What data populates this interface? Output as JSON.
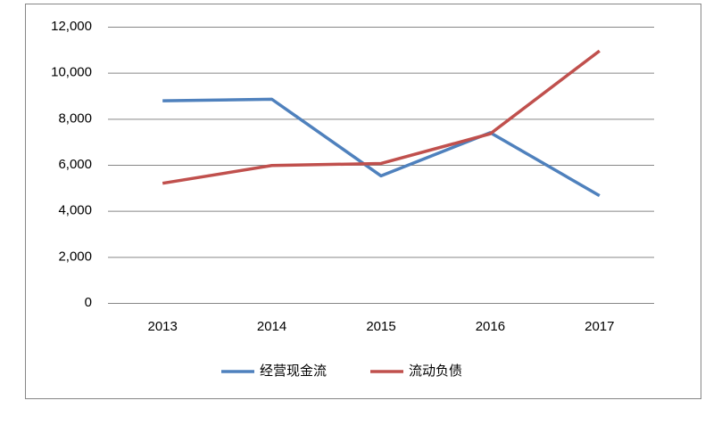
{
  "chart_data": {
    "type": "line",
    "categories": [
      "2013",
      "2014",
      "2015",
      "2016",
      "2017"
    ],
    "series": [
      {
        "name": "经营现金流",
        "color": "#4f81bd",
        "values": [
          8780,
          8850,
          5520,
          7400,
          4660
        ]
      },
      {
        "name": "流动负债",
        "color": "#c0504d",
        "values": [
          5200,
          5970,
          6060,
          7350,
          10950
        ]
      }
    ],
    "ylim": [
      0,
      12000
    ],
    "yticks": [
      0,
      {
        "value": 2000,
        "label": "2,000"
      },
      {
        "value": 4000,
        "label": "4,000"
      },
      {
        "value": 6000,
        "label": "6,000"
      },
      {
        "value": 8000,
        "label": "8,000"
      },
      {
        "value": 10000,
        "label": "10,000"
      },
      {
        "value": 12000,
        "label": "12,000"
      }
    ],
    "grid": true,
    "legend": "bottom"
  }
}
